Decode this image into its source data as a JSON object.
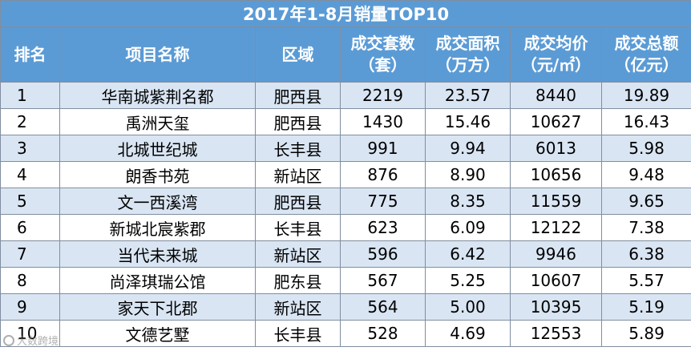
{
  "table": {
    "title": "2017年1-8月销量TOP10",
    "headers": [
      {
        "line1": "排名",
        "line2": ""
      },
      {
        "line1": "项目名称",
        "line2": ""
      },
      {
        "line1": "区域",
        "line2": ""
      },
      {
        "line1": "成交套数",
        "line2": "（套）"
      },
      {
        "line1": "成交面积",
        "line2": "（万方）"
      },
      {
        "line1": "成交均价",
        "line2": "（元/㎡）"
      },
      {
        "line1": "成交总额",
        "line2": "（亿元）"
      }
    ],
    "rows": [
      [
        "1",
        "华南城紫荆名都",
        "肥西县",
        "2219",
        "23.57",
        "8440",
        "19.89"
      ],
      [
        "2",
        "禹洲天玺",
        "肥西县",
        "1430",
        "15.46",
        "10627",
        "16.43"
      ],
      [
        "3",
        "北城世纪城",
        "长丰县",
        "991",
        "9.94",
        "6013",
        "5.98"
      ],
      [
        "4",
        "朗香书苑",
        "新站区",
        "876",
        "8.90",
        "10656",
        "9.48"
      ],
      [
        "5",
        "文一西溪湾",
        "肥西县",
        "775",
        "8.35",
        "11559",
        "9.65"
      ],
      [
        "6",
        "新城北宸紫郡",
        "长丰县",
        "623",
        "6.09",
        "12122",
        "7.38"
      ],
      [
        "7",
        "当代未来城",
        "新站区",
        "596",
        "6.42",
        "9946",
        "6.38"
      ],
      [
        "8",
        "尚泽琪瑞公馆",
        "肥东县",
        "567",
        "5.25",
        "10607",
        "5.57"
      ],
      [
        "9",
        "家天下北郡",
        "新站区",
        "564",
        "5.00",
        "10395",
        "5.19"
      ],
      [
        "10",
        "文德艺墅",
        "长丰县",
        "528",
        "4.69",
        "12553",
        "5.89"
      ]
    ]
  },
  "watermark": {
    "text": "大数跨境"
  },
  "colors": {
    "header_bg": "#5b9bd5",
    "header_text": "#ffffff",
    "row_band": "#d9e5f3",
    "row_plain": "#ffffff",
    "border": "#7f8ea0"
  }
}
